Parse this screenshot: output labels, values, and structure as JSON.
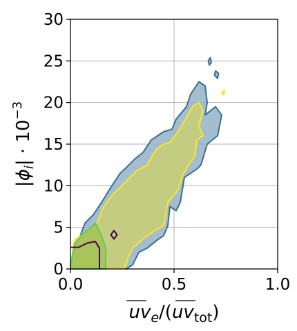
{
  "chart_data": {
    "type": "contour",
    "title": "",
    "xlabel": "uv_e/(uv_tot)",
    "ylabel": "|φ_i| · 10^-3",
    "xlim": [
      0.0,
      1.0
    ],
    "ylim": [
      0,
      30
    ],
    "x_ticks": [
      "0.0",
      "0.5",
      "1.0"
    ],
    "y_ticks": [
      "0",
      "5",
      "10",
      "15",
      "20",
      "25",
      "30"
    ],
    "grid": true,
    "series": [
      {
        "color": "#3b6e8f",
        "fill": "#94b3c8",
        "regions": [
          [
            [
              0.0,
              0.5
            ],
            [
              0.04,
              3.5
            ],
            [
              0.07,
              5.5
            ],
            [
              0.11,
              6.5
            ],
            [
              0.15,
              8.0
            ],
            [
              0.2,
              10.0
            ],
            [
              0.24,
              11.5
            ],
            [
              0.27,
              12.2
            ],
            [
              0.31,
              13.2
            ],
            [
              0.35,
              14.0
            ],
            [
              0.39,
              15.5
            ],
            [
              0.45,
              16.5
            ],
            [
              0.49,
              16.8
            ],
            [
              0.51,
              18.0
            ],
            [
              0.56,
              19.5
            ],
            [
              0.58,
              21.0
            ],
            [
              0.62,
              22.5
            ],
            [
              0.65,
              22.0
            ],
            [
              0.66,
              20.0
            ],
            [
              0.65,
              18.5
            ],
            [
              0.7,
              19.5
            ],
            [
              0.73,
              18.5
            ],
            [
              0.71,
              16.0
            ],
            [
              0.66,
              15.0
            ],
            [
              0.63,
              12.5
            ],
            [
              0.61,
              12.0
            ],
            [
              0.55,
              11.0
            ],
            [
              0.53,
              8.0
            ],
            [
              0.51,
              7.0
            ],
            [
              0.48,
              7.5
            ],
            [
              0.47,
              5.2
            ],
            [
              0.45,
              4.0
            ],
            [
              0.42,
              3.5
            ],
            [
              0.37,
              2.5
            ],
            [
              0.33,
              2.0
            ],
            [
              0.3,
              0.5
            ],
            [
              0.27,
              0.0
            ],
            [
              0.0,
              0.0
            ]
          ],
          [
            [
              0.665,
              25.0
            ],
            [
              0.675,
              25.4
            ],
            [
              0.68,
              24.8
            ],
            [
              0.67,
              24.5
            ]
          ],
          [
            [
              0.7,
              23.8
            ],
            [
              0.715,
              23.5
            ],
            [
              0.71,
              22.9
            ],
            [
              0.695,
              23.3
            ]
          ]
        ]
      },
      {
        "color": "#fde725",
        "fill": "#c9cf73",
        "regions": [
          [
            [
              0.0,
              0.5
            ],
            [
              0.02,
              3.5
            ],
            [
              0.08,
              4.5
            ],
            [
              0.12,
              5.0
            ],
            [
              0.16,
              7.5
            ],
            [
              0.2,
              8.8
            ],
            [
              0.24,
              9.8
            ],
            [
              0.28,
              10.8
            ],
            [
              0.32,
              11.8
            ],
            [
              0.37,
              12.5
            ],
            [
              0.4,
              13.8
            ],
            [
              0.42,
              14.5
            ],
            [
              0.45,
              15.0
            ],
            [
              0.48,
              15.2
            ],
            [
              0.52,
              16.5
            ],
            [
              0.56,
              18.2
            ],
            [
              0.59,
              19.5
            ],
            [
              0.62,
              20.0
            ],
            [
              0.64,
              19.0
            ],
            [
              0.62,
              17.2
            ],
            [
              0.64,
              16.0
            ],
            [
              0.61,
              15.5
            ],
            [
              0.6,
              13.5
            ],
            [
              0.57,
              12.5
            ],
            [
              0.54,
              11.2
            ],
            [
              0.52,
              9.5
            ],
            [
              0.47,
              8.0
            ],
            [
              0.45,
              5.2
            ],
            [
              0.42,
              4.8
            ],
            [
              0.36,
              3.8
            ],
            [
              0.3,
              2.5
            ],
            [
              0.28,
              1.5
            ],
            [
              0.26,
              0.0
            ],
            [
              0.0,
              0.0
            ]
          ],
          [
            [
              0.73,
              21.2
            ],
            [
              0.745,
              21.5
            ],
            [
              0.74,
              20.9
            ]
          ]
        ]
      },
      {
        "color": "#5ec962",
        "fill": "#a4c253",
        "regions": [
          [
            [
              0.0,
              0.3
            ],
            [
              0.02,
              3.0
            ],
            [
              0.06,
              4.2
            ],
            [
              0.1,
              5.0
            ],
            [
              0.12,
              5.5
            ],
            [
              0.15,
              4.0
            ],
            [
              0.17,
              2.5
            ],
            [
              0.17,
              0.0
            ],
            [
              0.0,
              0.0
            ]
          ]
        ]
      },
      {
        "color": "#440154",
        "fill": "none",
        "regions": [
          [
            [
              0.0,
              2.6
            ],
            [
              0.04,
              2.6
            ],
            [
              0.08,
              3.1
            ],
            [
              0.12,
              3.3
            ],
            [
              0.14,
              2.5
            ],
            [
              0.14,
              0.0
            ]
          ],
          [
            [
              0.195,
              4.1
            ],
            [
              0.21,
              4.6
            ],
            [
              0.225,
              4.1
            ],
            [
              0.21,
              3.6
            ]
          ]
        ]
      }
    ]
  }
}
